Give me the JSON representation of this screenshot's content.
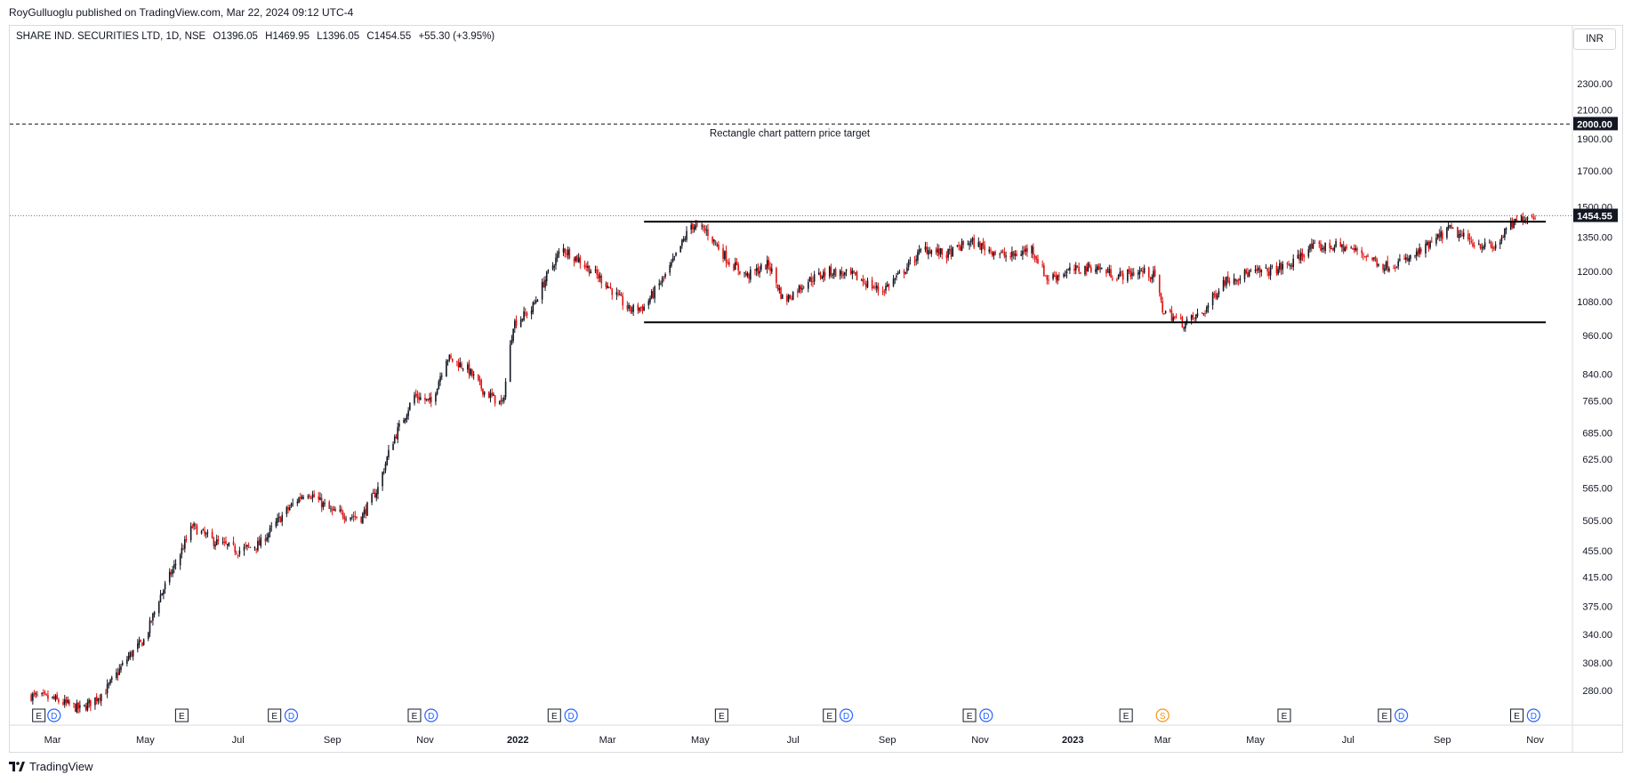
{
  "header": {
    "credit": "RoyGulluoglu published on TradingView.com, Mar 22, 2024 09:12 UTC-4",
    "symbol": "SHARE IND. SECURITIES LTD, 1D, NSE",
    "open": "O1396.05",
    "high": "H1469.95",
    "low": "L1396.05",
    "close": "C1454.55",
    "change": "+55.30 (+3.95%)",
    "currency": "INR"
  },
  "footer": {
    "brand": "TradingView"
  },
  "colors": {
    "up": "#131722",
    "down": "#e0110f",
    "accent": "#2962ff",
    "split": "#f7931a"
  },
  "chart_data": {
    "type": "candlestick",
    "title": "SHARE IND. SECURITIES LTD, 1D, NSE",
    "y_scale": "log",
    "ylim": [
      260,
      2620
    ],
    "x_range": [
      "2021-02-12",
      "2023-11-15"
    ],
    "x_ticks": [
      {
        "date": "2021-03-01",
        "label": "Mar",
        "bold": false
      },
      {
        "date": "2021-05-01",
        "label": "May",
        "bold": false
      },
      {
        "date": "2021-07-01",
        "label": "Jul",
        "bold": false
      },
      {
        "date": "2021-09-01",
        "label": "Sep",
        "bold": false
      },
      {
        "date": "2021-11-01",
        "label": "Nov",
        "bold": false
      },
      {
        "date": "2022-01-01",
        "label": "2022",
        "bold": true
      },
      {
        "date": "2022-03-01",
        "label": "Mar",
        "bold": false
      },
      {
        "date": "2022-05-01",
        "label": "May",
        "bold": false
      },
      {
        "date": "2022-07-01",
        "label": "Jul",
        "bold": false
      },
      {
        "date": "2022-09-01",
        "label": "Sep",
        "bold": false
      },
      {
        "date": "2022-11-01",
        "label": "Nov",
        "bold": false
      },
      {
        "date": "2023-01-01",
        "label": "2023",
        "bold": true
      },
      {
        "date": "2023-03-01",
        "label": "Mar",
        "bold": false
      },
      {
        "date": "2023-05-01",
        "label": "May",
        "bold": false
      },
      {
        "date": "2023-07-01",
        "label": "Jul",
        "bold": false
      },
      {
        "date": "2023-09-01",
        "label": "Sep",
        "bold": false
      },
      {
        "date": "2023-11-01",
        "label": "Nov",
        "bold": false
      }
    ],
    "y_ticks": [
      {
        "value": 2300,
        "label": "2300.00"
      },
      {
        "value": 2100,
        "label": "2100.00"
      },
      {
        "value": 1900,
        "label": "1900.00"
      },
      {
        "value": 1700,
        "label": "1700.00"
      },
      {
        "value": 1500,
        "label": "1500.00"
      },
      {
        "value": 1350,
        "label": "1350.00"
      },
      {
        "value": 1200,
        "label": "1200.00"
      },
      {
        "value": 1080,
        "label": "1080.00"
      },
      {
        "value": 960,
        "label": "960.00"
      },
      {
        "value": 840,
        "label": "840.00"
      },
      {
        "value": 765,
        "label": "765.00"
      },
      {
        "value": 685,
        "label": "685.00"
      },
      {
        "value": 625,
        "label": "625.00"
      },
      {
        "value": 565,
        "label": "565.00"
      },
      {
        "value": 505,
        "label": "505.00"
      },
      {
        "value": 455,
        "label": "455.00"
      },
      {
        "value": 415,
        "label": "415.00"
      },
      {
        "value": 375,
        "label": "375.00"
      },
      {
        "value": 340,
        "label": "340.00"
      },
      {
        "value": 308,
        "label": "308.00"
      },
      {
        "value": 280,
        "label": "280.00"
      }
    ],
    "price_path": [
      {
        "date": "2021-02-15",
        "price": 275
      },
      {
        "date": "2021-03-01",
        "price": 272
      },
      {
        "date": "2021-03-20",
        "price": 262
      },
      {
        "date": "2021-04-05",
        "price": 280
      },
      {
        "date": "2021-04-20",
        "price": 315
      },
      {
        "date": "2021-05-01",
        "price": 335
      },
      {
        "date": "2021-05-10",
        "price": 385
      },
      {
        "date": "2021-05-22",
        "price": 440
      },
      {
        "date": "2021-06-01",
        "price": 495
      },
      {
        "date": "2021-06-15",
        "price": 470
      },
      {
        "date": "2021-07-01",
        "price": 455
      },
      {
        "date": "2021-07-15",
        "price": 465
      },
      {
        "date": "2021-08-01",
        "price": 520
      },
      {
        "date": "2021-08-15",
        "price": 560
      },
      {
        "date": "2021-09-01",
        "price": 520
      },
      {
        "date": "2021-09-20",
        "price": 510
      },
      {
        "date": "2021-10-01",
        "price": 565
      },
      {
        "date": "2021-10-10",
        "price": 660
      },
      {
        "date": "2021-10-25",
        "price": 780
      },
      {
        "date": "2021-11-05",
        "price": 760
      },
      {
        "date": "2021-11-15",
        "price": 890
      },
      {
        "date": "2021-11-28",
        "price": 860
      },
      {
        "date": "2021-12-10",
        "price": 790
      },
      {
        "date": "2021-12-22",
        "price": 755
      },
      {
        "date": "2021-12-29",
        "price": 1000
      },
      {
        "date": "2022-01-10",
        "price": 1050
      },
      {
        "date": "2022-01-20",
        "price": 1180
      },
      {
        "date": "2022-01-30",
        "price": 1300
      },
      {
        "date": "2022-02-10",
        "price": 1250
      },
      {
        "date": "2022-02-28",
        "price": 1150
      },
      {
        "date": "2022-03-15",
        "price": 1050
      },
      {
        "date": "2022-03-25",
        "price": 1060
      },
      {
        "date": "2022-04-10",
        "price": 1200
      },
      {
        "date": "2022-04-25",
        "price": 1410
      },
      {
        "date": "2022-05-05",
        "price": 1380
      },
      {
        "date": "2022-05-20",
        "price": 1240
      },
      {
        "date": "2022-06-01",
        "price": 1180
      },
      {
        "date": "2022-06-15",
        "price": 1230
      },
      {
        "date": "2022-06-25",
        "price": 1080
      },
      {
        "date": "2022-07-10",
        "price": 1160
      },
      {
        "date": "2022-07-25",
        "price": 1200
      },
      {
        "date": "2022-08-10",
        "price": 1180
      },
      {
        "date": "2022-08-28",
        "price": 1120
      },
      {
        "date": "2022-09-10",
        "price": 1190
      },
      {
        "date": "2022-09-25",
        "price": 1300
      },
      {
        "date": "2022-10-10",
        "price": 1270
      },
      {
        "date": "2022-10-25",
        "price": 1330
      },
      {
        "date": "2022-11-05",
        "price": 1300
      },
      {
        "date": "2022-11-20",
        "price": 1260
      },
      {
        "date": "2022-12-05",
        "price": 1300
      },
      {
        "date": "2022-12-15",
        "price": 1170
      },
      {
        "date": "2022-12-30",
        "price": 1200
      },
      {
        "date": "2023-01-15",
        "price": 1220
      },
      {
        "date": "2023-01-30",
        "price": 1180
      },
      {
        "date": "2023-02-15",
        "price": 1200
      },
      {
        "date": "2023-02-24",
        "price": 1180
      },
      {
        "date": "2023-03-01",
        "price": 1050
      },
      {
        "date": "2023-03-15",
        "price": 1000
      },
      {
        "date": "2023-03-28",
        "price": 1040
      },
      {
        "date": "2023-04-10",
        "price": 1160
      },
      {
        "date": "2023-04-25",
        "price": 1190
      },
      {
        "date": "2023-05-10",
        "price": 1200
      },
      {
        "date": "2023-05-25",
        "price": 1230
      },
      {
        "date": "2023-06-05",
        "price": 1300
      },
      {
        "date": "2023-06-25",
        "price": 1310
      },
      {
        "date": "2023-07-10",
        "price": 1280
      },
      {
        "date": "2023-07-25",
        "price": 1220
      },
      {
        "date": "2023-08-10",
        "price": 1250
      },
      {
        "date": "2023-08-25",
        "price": 1320
      },
      {
        "date": "2023-09-05",
        "price": 1390
      },
      {
        "date": "2023-09-20",
        "price": 1330
      },
      {
        "date": "2023-10-05",
        "price": 1300
      },
      {
        "date": "2023-10-15",
        "price": 1400
      },
      {
        "date": "2023-10-25",
        "price": 1450
      },
      {
        "date": "2023-11-01",
        "price": 1454.55
      }
    ],
    "levels": [
      {
        "name": "target-line",
        "value": 2000,
        "style": "dashed",
        "label": "Rectangle chart pattern price target",
        "price_label": "2000.00"
      },
      {
        "name": "rectangle-top",
        "value": 1425,
        "style": "solid",
        "from": "2022-03-25",
        "to": "2023-11-08"
      },
      {
        "name": "rectangle-bottom",
        "value": 1005,
        "style": "solid",
        "from": "2022-03-25",
        "to": "2023-11-08"
      },
      {
        "name": "last-price-line",
        "value": 1454.55,
        "style": "dotted",
        "price_label": "1454.55"
      }
    ],
    "events": [
      {
        "date": "2021-02-20",
        "type": "E"
      },
      {
        "date": "2021-03-02",
        "type": "D"
      },
      {
        "date": "2021-05-25",
        "type": "E"
      },
      {
        "date": "2021-07-25",
        "type": "E"
      },
      {
        "date": "2021-08-05",
        "type": "D"
      },
      {
        "date": "2021-10-25",
        "type": "E"
      },
      {
        "date": "2021-11-05",
        "type": "D"
      },
      {
        "date": "2022-01-25",
        "type": "E"
      },
      {
        "date": "2022-02-05",
        "type": "D"
      },
      {
        "date": "2022-05-15",
        "type": "E"
      },
      {
        "date": "2022-07-25",
        "type": "E"
      },
      {
        "date": "2022-08-05",
        "type": "D"
      },
      {
        "date": "2022-10-25",
        "type": "E"
      },
      {
        "date": "2022-11-05",
        "type": "D"
      },
      {
        "date": "2023-02-05",
        "type": "E"
      },
      {
        "date": "2023-03-01",
        "type": "S"
      },
      {
        "date": "2023-05-20",
        "type": "E"
      },
      {
        "date": "2023-07-25",
        "type": "E"
      },
      {
        "date": "2023-08-05",
        "type": "D"
      },
      {
        "date": "2023-10-20",
        "type": "E"
      },
      {
        "date": "2023-10-31",
        "type": "D"
      }
    ]
  }
}
